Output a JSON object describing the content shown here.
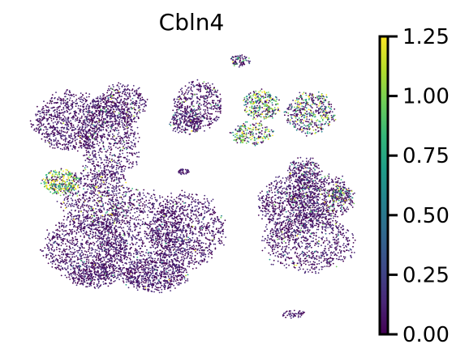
{
  "chart_data": {
    "type": "scatter",
    "title": "Cbln4",
    "xlabel": "",
    "ylabel": "",
    "grid": false,
    "axes_visible": false,
    "colormap": "viridis",
    "colorbar": {
      "min": 0.0,
      "max": 1.25,
      "ticks": [
        0.0,
        0.25,
        0.5,
        0.75,
        1.0,
        1.25
      ],
      "tick_labels": [
        "0.00",
        "0.25",
        "0.50",
        "0.75",
        "1.00",
        "1.25"
      ],
      "placement": "right",
      "stops": [
        "#440154",
        "#482878",
        "#3e4989",
        "#31688e",
        "#26828e",
        "#1f9e89",
        "#35b779",
        "#6ece58",
        "#b5de2b",
        "#fde725"
      ]
    },
    "background_color": "#440154",
    "high_color": "#fde725"
  }
}
